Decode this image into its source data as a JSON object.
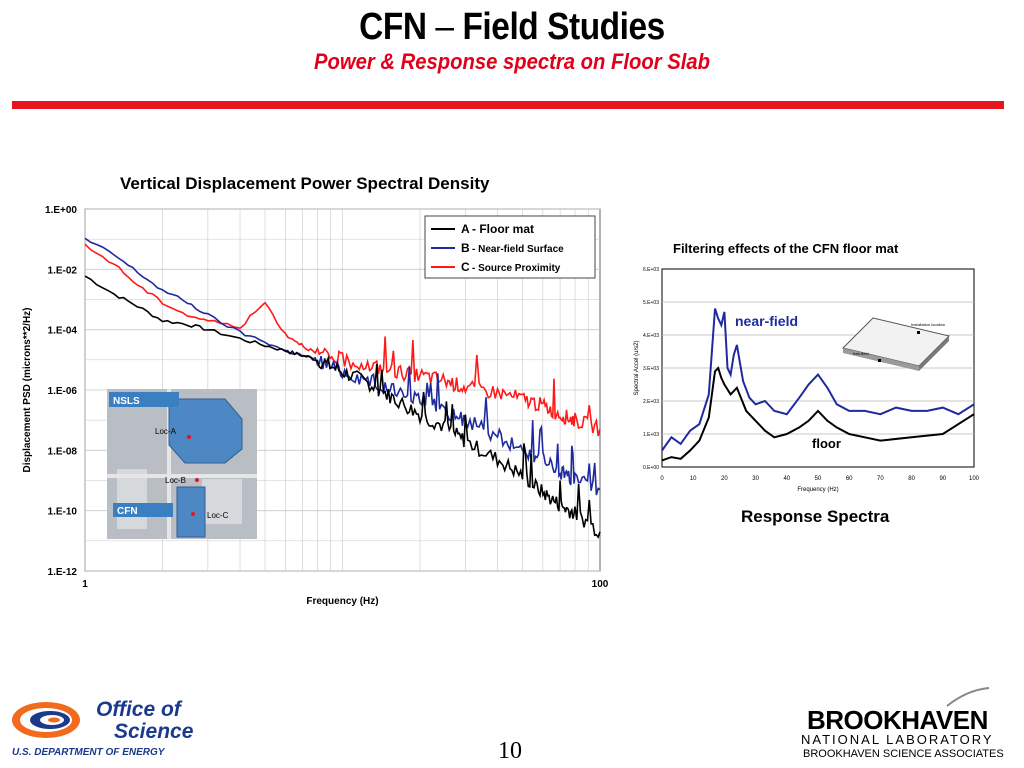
{
  "slide": {
    "title_a": "CFN",
    "title_dash": "–",
    "title_b": "Field Studies",
    "subtitle": "Power & Response spectra on Floor Slab",
    "page_number": "10"
  },
  "colors": {
    "accent_red": "#e8141e",
    "subtitle_red": "#e0001b",
    "series_a": "#000000",
    "series_b": "#1f2a9e",
    "series_c": "#ff1a1a",
    "doe_blue": "#1a3a8c",
    "doe_orange": "#f26b1d"
  },
  "footer": {
    "doe_line1": "Office of",
    "doe_line2": "Science",
    "doe_dept": "U.S. DEPARTMENT OF ENERGY",
    "bnl_name": "BROOKHAVEN",
    "bnl_sub": "NATIONAL LABORATORY",
    "bnl_assoc": "BROOKHAVEN SCIENCE ASSOCIATES"
  },
  "chart_data": [
    {
      "type": "line",
      "title": "Vertical Displacement Power Spectral Density",
      "xlabel": "Frequency (Hz)",
      "ylabel": "Displacement PSD (microns**2/Hz)",
      "x_scale": "log",
      "y_scale": "log",
      "xlim": [
        1,
        100
      ],
      "ylim": [
        1e-12,
        1
      ],
      "x_tick_labels": [
        "1",
        "100"
      ],
      "y_tick_labels": [
        "1.E+00",
        "1.E-02",
        "1.E-04",
        "1.E-06",
        "1.E-08",
        "1.E-10",
        "1.E-12"
      ],
      "grid": true,
      "legend_position": "top-right",
      "series": [
        {
          "key": "A",
          "name": "Floor mat",
          "color": "#000000",
          "x": [
            1,
            1.3,
            1.6,
            2,
            2.5,
            3,
            4,
            5,
            6,
            8,
            10,
            13,
            16,
            20,
            25,
            30,
            40,
            50,
            60,
            70,
            80,
            100
          ],
          "y": [
            0.006,
            0.0015,
            0.0006,
            0.0002,
            0.00015,
            0.0001,
            5e-05,
            3e-05,
            2e-05,
            1e-05,
            4e-06,
            1.5e-06,
            5e-07,
            1.5e-07,
            6e-08,
            2e-08,
            5e-09,
            1.5e-09,
            4e-10,
            1.5e-10,
            8e-11,
            2e-11
          ]
        },
        {
          "key": "B",
          "name": "Near-field Surface",
          "color": "#1f2a9e",
          "x": [
            1,
            1.3,
            1.6,
            2,
            2.5,
            3,
            4,
            5,
            6,
            8,
            10,
            13,
            16,
            20,
            25,
            30,
            40,
            50,
            60,
            70,
            80,
            100
          ],
          "y": [
            0.1,
            0.03,
            0.008,
            0.002,
            0.0008,
            0.0003,
            8e-05,
            4e-05,
            2e-05,
            1e-05,
            4e-06,
            2e-06,
            1e-06,
            5e-07,
            2e-07,
            1e-07,
            3e-08,
            1e-08,
            5e-09,
            2e-09,
            1e-09,
            5e-10
          ]
        },
        {
          "key": "C",
          "name": "Source Proximity",
          "color": "#ff1a1a",
          "x": [
            1,
            1.3,
            1.6,
            2,
            2.5,
            3,
            4,
            5,
            6,
            8,
            10,
            13,
            16,
            20,
            25,
            30,
            40,
            50,
            60,
            70,
            80,
            100
          ],
          "y": [
            0.06,
            0.015,
            0.003,
            0.0008,
            0.0003,
            0.0002,
            0.00012,
            0.0008,
            7e-05,
            1.5e-05,
            1e-05,
            6e-06,
            4e-06,
            3e-06,
            2e-06,
            1.2e-06,
            8e-07,
            5e-07,
            3e-07,
            1.5e-07,
            1e-07,
            5e-08
          ]
        }
      ],
      "inset_map": {
        "labels": [
          "NSLS",
          "Loc-A",
          "Loc-B",
          "CFN",
          "Loc-C"
        ]
      }
    },
    {
      "type": "line",
      "title": "Filtering effects of the CFN floor mat",
      "caption": "Response Spectra",
      "xlabel": "Frequency (Hz)",
      "ylabel": "Spectral Accel (u/s2)",
      "xlim": [
        0,
        100
      ],
      "ylim": [
        0,
        6000
      ],
      "x_tick_labels": [
        "0",
        "10",
        "20",
        "30",
        "40",
        "50",
        "60",
        "70",
        "80",
        "90",
        "100"
      ],
      "y_tick_labels": [
        "0.E+00",
        "1.E+03",
        "2.E+03",
        "3.E+03",
        "4.E+03",
        "5.E+03",
        "6.E+03"
      ],
      "grid": true,
      "inset_labels": [
        "Installation location",
        "free-field"
      ],
      "series": [
        {
          "name": "near-field",
          "color": "#1f2a9e",
          "x": [
            0,
            3,
            6,
            9,
            12,
            15,
            17,
            18,
            19,
            20,
            21,
            22,
            23,
            24,
            26,
            28,
            30,
            33,
            36,
            40,
            44,
            47,
            50,
            53,
            56,
            60,
            65,
            70,
            75,
            80,
            85,
            90,
            95,
            100
          ],
          "y": [
            500,
            900,
            700,
            1100,
            1300,
            2200,
            4800,
            4500,
            4300,
            4700,
            3000,
            2800,
            3400,
            3700,
            2600,
            2100,
            1900,
            2000,
            1700,
            1600,
            2100,
            2500,
            2800,
            2400,
            1900,
            1700,
            1700,
            1600,
            1800,
            1700,
            1700,
            1800,
            1600,
            1900
          ]
        },
        {
          "name": "floor",
          "color": "#000000",
          "x": [
            0,
            3,
            6,
            9,
            12,
            15,
            17,
            18,
            19,
            20,
            22,
            24,
            27,
            30,
            33,
            36,
            40,
            44,
            47,
            50,
            53,
            56,
            60,
            65,
            70,
            80,
            90,
            100
          ],
          "y": [
            200,
            300,
            250,
            500,
            800,
            1500,
            2900,
            3000,
            2700,
            2500,
            2200,
            2400,
            1700,
            1400,
            1100,
            900,
            1000,
            1200,
            1400,
            1700,
            1400,
            1200,
            1000,
            900,
            800,
            900,
            1000,
            1600
          ]
        }
      ]
    }
  ]
}
